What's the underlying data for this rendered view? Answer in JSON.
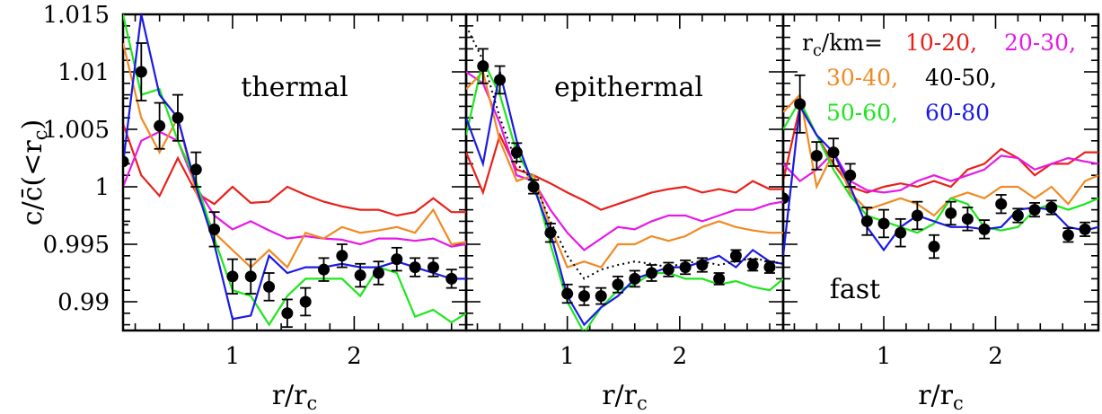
{
  "chart_data": {
    "type": "line",
    "ylabel": "c/c̄(<r_c)",
    "y_range": [
      0.9875,
      1.015
    ],
    "y_ticks": [
      "0.99",
      "0.995",
      "1",
      "1.005",
      "1.01",
      "1.015"
    ],
    "x_range": [
      0.1,
      2.92
    ],
    "x_ticks": [
      "1",
      "2"
    ],
    "legend": {
      "prefix": "r_c/km=",
      "placement": "top-right",
      "entries": [
        {
          "label": "10-20,",
          "color": "#e8201a"
        },
        {
          "label": "20-30,",
          "color": "#e619e6"
        },
        {
          "label": "30-40,",
          "color": "#f08a24"
        },
        {
          "label": "40-50,",
          "color": "#000000"
        },
        {
          "label": "50-60,",
          "color": "#1ee61e"
        },
        {
          "label": "60-80",
          "color": "#1a1ae6"
        }
      ]
    },
    "panels": [
      {
        "label": "thermal",
        "xlabel": "r/r_c",
        "series": [
          {
            "color": "#e8201a",
            "x": [
              0.1,
              0.25,
              0.4,
              0.55,
              0.7,
              0.85,
              1.0,
              1.15,
              1.3,
              1.45,
              1.6,
              1.75,
              1.9,
              2.05,
              2.2,
              2.35,
              2.5,
              2.65,
              2.8,
              2.92
            ],
            "y": [
              1.0055,
              1.001,
              0.9992,
              1.0025,
              0.9995,
              0.9985,
              1.0,
              0.9986,
              0.9987,
              1.0,
              0.9993,
              0.9987,
              0.9983,
              0.998,
              0.998,
              0.9975,
              0.9978,
              0.999,
              0.9978,
              0.9978
            ]
          },
          {
            "color": "#e619e6",
            "x": [
              0.1,
              0.25,
              0.4,
              0.55,
              0.7,
              0.85,
              1.0,
              1.15,
              1.3,
              1.45,
              1.6,
              1.75,
              1.9,
              2.05,
              2.2,
              2.35,
              2.5,
              2.65,
              2.8,
              2.92
            ],
            "y": [
              1.0,
              1.004,
              1.0048,
              1.004,
              1.0,
              0.9975,
              0.9963,
              0.997,
              0.9962,
              0.9955,
              0.9957,
              0.9955,
              0.9954,
              0.995,
              0.9955,
              0.9955,
              0.9953,
              0.9955,
              0.9948,
              0.995
            ]
          },
          {
            "color": "#f08a24",
            "x": [
              0.1,
              0.25,
              0.4,
              0.55,
              0.7,
              0.85,
              1.0,
              1.15,
              1.3,
              1.45,
              1.6,
              1.75,
              1.9,
              2.05,
              2.2,
              2.35,
              2.5,
              2.65,
              2.8,
              2.92
            ],
            "y": [
              1.0125,
              1.006,
              1.003,
              1.006,
              0.9995,
              0.996,
              0.9945,
              0.993,
              0.9945,
              0.993,
              0.996,
              0.9955,
              0.9965,
              0.996,
              0.9962,
              0.9965,
              0.996,
              0.998,
              0.995,
              0.9952
            ]
          },
          {
            "color": "#1ee61e",
            "x": [
              0.1,
              0.25,
              0.4,
              0.55,
              0.7,
              0.85,
              1.0,
              1.15,
              1.3,
              1.45,
              1.6,
              1.75,
              1.9,
              2.05,
              2.2,
              2.35,
              2.5,
              2.65,
              2.8,
              2.92
            ],
            "y": [
              1.015,
              1.008,
              1.0085,
              1.004,
              1.0005,
              0.9955,
              0.991,
              0.9905,
              0.988,
              0.9905,
              0.992,
              0.992,
              0.992,
              0.9905,
              0.993,
              0.9925,
              0.9887,
              0.9893,
              0.9882,
              0.989
            ]
          },
          {
            "color": "#1a1ae6",
            "x": [
              0.1,
              0.25,
              0.4,
              0.55,
              0.7,
              0.85,
              1.0,
              1.15,
              1.3,
              1.45,
              1.6,
              1.75,
              1.9,
              2.05,
              2.2,
              2.35,
              2.5,
              2.65,
              2.8,
              2.92
            ],
            "y": [
              1.002,
              1.015,
              1.008,
              1.006,
              1.0,
              0.995,
              0.9885,
              0.9888,
              0.994,
              0.9925,
              0.993,
              0.993,
              0.9933,
              0.993,
              0.993,
              0.9935,
              0.993,
              0.9925,
              0.992,
              0.992
            ]
          }
        ],
        "points": {
          "x": [
            0.1,
            0.25,
            0.4,
            0.55,
            0.7,
            0.85,
            1.0,
            1.15,
            1.3,
            1.45,
            1.6,
            1.75,
            1.9,
            2.05,
            2.2,
            2.35,
            2.5,
            2.65,
            2.8
          ],
          "y": [
            1.0022,
            1.01,
            1.0053,
            1.006,
            1.0015,
            0.9963,
            0.9922,
            0.9922,
            0.9913,
            0.989,
            0.99,
            0.9928,
            0.994,
            0.9923,
            0.9925,
            0.9937,
            0.993,
            0.993,
            0.992
          ],
          "err": [
            0.0055,
            0.0025,
            0.002,
            0.002,
            0.0015,
            0.0015,
            0.0015,
            0.0015,
            0.0012,
            0.0012,
            0.0012,
            0.001,
            0.001,
            0.001,
            0.001,
            0.001,
            0.0008,
            0.0008,
            0.0008
          ]
        }
      },
      {
        "label": "epithermal",
        "xlabel": "r/r_c",
        "series": [
          {
            "color": "#e8201a",
            "x": [
              0.1,
              0.25,
              0.4,
              0.55,
              0.7,
              0.85,
              1.0,
              1.15,
              1.3,
              1.45,
              1.6,
              1.75,
              1.9,
              2.05,
              2.2,
              2.35,
              2.5,
              2.65,
              2.8,
              2.92
            ],
            "y": [
              1.003,
              0.9995,
              1.0045,
              1.0015,
              1.001,
              1.0003,
              0.9995,
              0.9988,
              0.998,
              0.9985,
              0.999,
              0.9995,
              0.9998,
              1.0,
              0.9995,
              0.9998,
              0.9995,
              1.0005,
              0.9998,
              0.9998
            ]
          },
          {
            "color": "#e619e6",
            "x": [
              0.1,
              0.25,
              0.4,
              0.55,
              0.7,
              0.85,
              1.0,
              1.15,
              1.3,
              1.45,
              1.6,
              1.75,
              1.9,
              2.05,
              2.2,
              2.35,
              2.5,
              2.65,
              2.8,
              2.92
            ],
            "y": [
              1.01,
              1.009,
              1.0055,
              1.001,
              1.0005,
              0.998,
              0.996,
              0.9945,
              0.9955,
              0.9965,
              0.9963,
              0.997,
              0.9975,
              0.9975,
              0.997,
              0.9975,
              0.998,
              0.998,
              0.9985,
              0.9987
            ]
          },
          {
            "color": "#f08a24",
            "x": [
              0.1,
              0.25,
              0.4,
              0.55,
              0.7,
              0.85,
              1.0,
              1.15,
              1.3,
              1.45,
              1.6,
              1.75,
              1.9,
              2.05,
              2.2,
              2.35,
              2.5,
              2.65,
              2.8,
              2.92
            ],
            "y": [
              1.0085,
              1.01,
              1.004,
              1.0005,
              1.001,
              0.9965,
              0.993,
              0.9935,
              0.993,
              0.995,
              0.995,
              0.9957,
              0.9953,
              0.9957,
              0.9965,
              0.997,
              0.9965,
              0.9962,
              0.996,
              0.996
            ]
          },
          {
            "color": "#1ee61e",
            "x": [
              0.1,
              0.25,
              0.4,
              0.55,
              0.7,
              0.85,
              1.0,
              1.15,
              1.3,
              1.45,
              1.6,
              1.75,
              1.9,
              2.05,
              2.2,
              2.35,
              2.5,
              2.65,
              2.8,
              2.92
            ],
            "y": [
              1.0045,
              1.011,
              1.008,
              1.003,
              1.0005,
              0.995,
              0.99,
              0.9873,
              0.9895,
              0.991,
              0.9915,
              0.9925,
              0.9925,
              0.992,
              0.992,
              0.9915,
              0.9918,
              0.9913,
              0.991,
              0.992
            ]
          },
          {
            "color": "#1a1ae6",
            "x": [
              0.1,
              0.25,
              0.4,
              0.55,
              0.7,
              0.85,
              1.0,
              1.15,
              1.3,
              1.45,
              1.6,
              1.75,
              1.9,
              2.05,
              2.2,
              2.35,
              2.5,
              2.65,
              2.8,
              2.92
            ],
            "y": [
              1.006,
              1.002,
              1.01,
              1.004,
              1.0,
              0.996,
              0.9905,
              0.988,
              0.9895,
              0.9905,
              0.992,
              0.9925,
              0.993,
              0.993,
              0.9935,
              0.994,
              0.993,
              0.9945,
              0.9935,
              0.9933
            ]
          },
          {
            "color": "#000000",
            "dash": true,
            "x": [
              0.1,
              0.25,
              0.4,
              0.55,
              0.7,
              0.85,
              1.0,
              1.15,
              1.3,
              1.45,
              1.6,
              1.75,
              1.9,
              2.05,
              2.2,
              2.35,
              2.5,
              2.65,
              2.8,
              2.92
            ],
            "y": [
              1.014,
              1.011,
              1.006,
              1.002,
              1.0005,
              0.997,
              0.994,
              0.992,
              0.9928,
              0.9932,
              0.9935,
              0.9933,
              0.993,
              0.9934,
              0.9935,
              0.9932,
              0.9935,
              0.9938,
              0.9935,
              0.9933
            ]
          }
        ],
        "points": {
          "x": [
            0.25,
            0.4,
            0.55,
            0.7,
            0.85,
            1.0,
            1.15,
            1.3,
            1.45,
            1.6,
            1.75,
            1.9,
            2.05,
            2.2,
            2.35,
            2.5,
            2.65,
            2.8
          ],
          "y": [
            1.0105,
            1.0093,
            1.003,
            1.0,
            0.996,
            0.9907,
            0.9905,
            0.9905,
            0.9915,
            0.992,
            0.9925,
            0.9928,
            0.993,
            0.9932,
            0.992,
            0.994,
            0.9932,
            0.993
          ],
          "err": [
            0.0015,
            0.0012,
            0.0008,
            0.0006,
            0.0008,
            0.0008,
            0.0008,
            0.0007,
            0.0007,
            0.0007,
            0.0007,
            0.0006,
            0.0006,
            0.0006,
            0.0005,
            0.0005,
            0.0005,
            0.0005
          ]
        }
      },
      {
        "label": "fast",
        "xlabel": "r/r_c",
        "series": [
          {
            "color": "#e8201a",
            "x": [
              0.1,
              0.25,
              0.4,
              0.55,
              0.7,
              0.85,
              1.0,
              1.15,
              1.3,
              1.45,
              1.6,
              1.75,
              1.9,
              2.05,
              2.2,
              2.35,
              2.5,
              2.65,
              2.8,
              2.92
            ],
            "y": [
              1.0005,
              1.007,
              1.0045,
              1.002,
              1.0,
              0.9995,
              1.0,
              1.0003,
              1.0,
              1.0005,
              1.0,
              1.0015,
              1.002,
              1.0033,
              1.0025,
              1.001,
              1.002,
              1.002,
              1.003,
              1.003
            ]
          },
          {
            "color": "#e619e6",
            "x": [
              0.1,
              0.25,
              0.4,
              0.55,
              0.7,
              0.85,
              1.0,
              1.15,
              1.3,
              1.45,
              1.6,
              1.75,
              1.9,
              2.05,
              2.2,
              2.35,
              2.5,
              2.65,
              2.8,
              2.92
            ],
            "y": [
              1.002,
              1.0005,
              1.0015,
              1.003,
              1.0005,
              0.9997,
              0.9995,
              0.9997,
              1.0005,
              1.001,
              1.0005,
              1.001,
              1.0015,
              1.0027,
              1.0025,
              1.0015,
              1.002,
              1.0025,
              1.0022,
              1.002
            ]
          },
          {
            "color": "#f08a24",
            "x": [
              0.1,
              0.25,
              0.4,
              0.55,
              0.7,
              0.85,
              1.0,
              1.15,
              1.3,
              1.45,
              1.6,
              1.75,
              1.9,
              2.05,
              2.2,
              2.35,
              2.5,
              2.65,
              2.8,
              2.92
            ],
            "y": [
              1.0065,
              1.008,
              1.0,
              1.003,
              0.9995,
              0.998,
              0.9985,
              0.999,
              0.9985,
              0.9975,
              0.999,
              0.9995,
              0.999,
              1.0,
              1.0,
              0.999,
              1.0,
              0.9985,
              1.0005,
              1.001
            ]
          },
          {
            "color": "#1ee61e",
            "x": [
              0.1,
              0.25,
              0.4,
              0.55,
              0.7,
              0.85,
              1.0,
              1.15,
              1.3,
              1.45,
              1.6,
              1.75,
              1.9,
              2.05,
              2.2,
              2.35,
              2.5,
              2.65,
              2.8,
              2.92
            ],
            "y": [
              1.005,
              1.0075,
              1.0045,
              1.0015,
              0.9992,
              0.9975,
              0.997,
              0.9965,
              0.996,
              0.9968,
              0.999,
              0.9985,
              0.9965,
              0.9962,
              0.9965,
              0.998,
              0.9985,
              0.998,
              0.9985,
              0.999
            ]
          },
          {
            "color": "#1a1ae6",
            "x": [
              0.1,
              0.25,
              0.4,
              0.55,
              0.7,
              0.85,
              1.0,
              1.15,
              1.3,
              1.45,
              1.6,
              1.75,
              1.9,
              2.05,
              2.2,
              2.35,
              2.5,
              2.65,
              2.8,
              2.92
            ],
            "y": [
              0.994,
              1.007,
              1.0045,
              1.003,
              1.0,
              0.9965,
              0.9945,
              0.9965,
              0.9975,
              0.997,
              0.9965,
              0.9965,
              0.9963,
              0.9965,
              0.998,
              0.9982,
              0.998,
              0.9965,
              0.9962,
              0.9965
            ]
          }
        ],
        "points": {
          "x": [
            0.1,
            0.25,
            0.4,
            0.55,
            0.7,
            0.85,
            1.0,
            1.15,
            1.3,
            1.45,
            1.6,
            1.75,
            1.9,
            2.05,
            2.2,
            2.35,
            2.5,
            2.65,
            2.8
          ],
          "y": [
            0.999,
            1.0072,
            1.0027,
            1.003,
            1.001,
            0.997,
            0.9968,
            0.996,
            0.9975,
            0.9948,
            0.9977,
            0.9972,
            0.9963,
            0.9985,
            0.9975,
            0.998,
            0.9982,
            0.9958,
            0.9963
          ],
          "err": [
            0.002,
            0.0025,
            0.0012,
            0.0012,
            0.001,
            0.0012,
            0.0012,
            0.0012,
            0.0012,
            0.001,
            0.001,
            0.001,
            0.0008,
            0.0008,
            0.0006,
            0.0006,
            0.0006,
            0.0006,
            0.0006
          ]
        }
      }
    ]
  }
}
